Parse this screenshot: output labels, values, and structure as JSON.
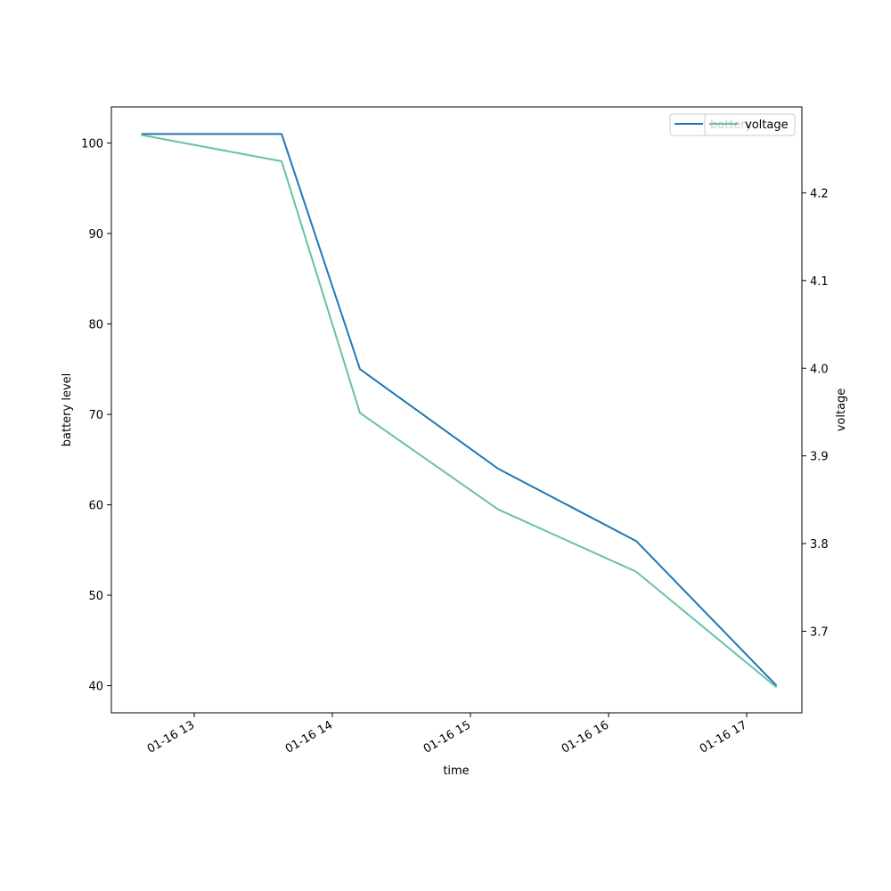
{
  "chart_data": {
    "type": "line",
    "xlabel": "time",
    "ylabel_left": "battery level",
    "ylabel_right": "voltage",
    "x_ticks": [
      "01-16 13",
      "01-16 14",
      "01-16 15",
      "01-16 16",
      "01-16 17"
    ],
    "x_tick_hours": [
      13,
      14,
      15,
      16,
      17
    ],
    "xlim_hours": [
      12.4,
      17.4
    ],
    "left_axis": {
      "ylim": [
        37,
        104
      ],
      "ticks": [
        40,
        50,
        60,
        70,
        80,
        90,
        100
      ]
    },
    "right_axis": {
      "ylim": [
        3.607,
        4.298
      ],
      "ticks": [
        "3.7",
        "3.8",
        "3.9",
        "4.0",
        "4.1",
        "4.2"
      ]
    },
    "x": [
      "01-16 12:37",
      "01-16 13:38",
      "01-16 14:12",
      "01-16 15:12",
      "01-16 16:12",
      "01-16 17:13"
    ],
    "x_hours": [
      12.617,
      13.633,
      14.2,
      15.2,
      16.2,
      17.217
    ],
    "series": [
      {
        "name": "battery",
        "axis": "left",
        "color": "#1f77b4",
        "values": [
          101,
          101,
          75,
          64,
          56,
          40
        ]
      },
      {
        "name": "voltage",
        "axis": "right",
        "color": "#66c2a5",
        "values": [
          4.266,
          4.236,
          3.949,
          3.839,
          3.768,
          3.636
        ]
      }
    ],
    "legend_placement": "top-right",
    "grid": false
  }
}
